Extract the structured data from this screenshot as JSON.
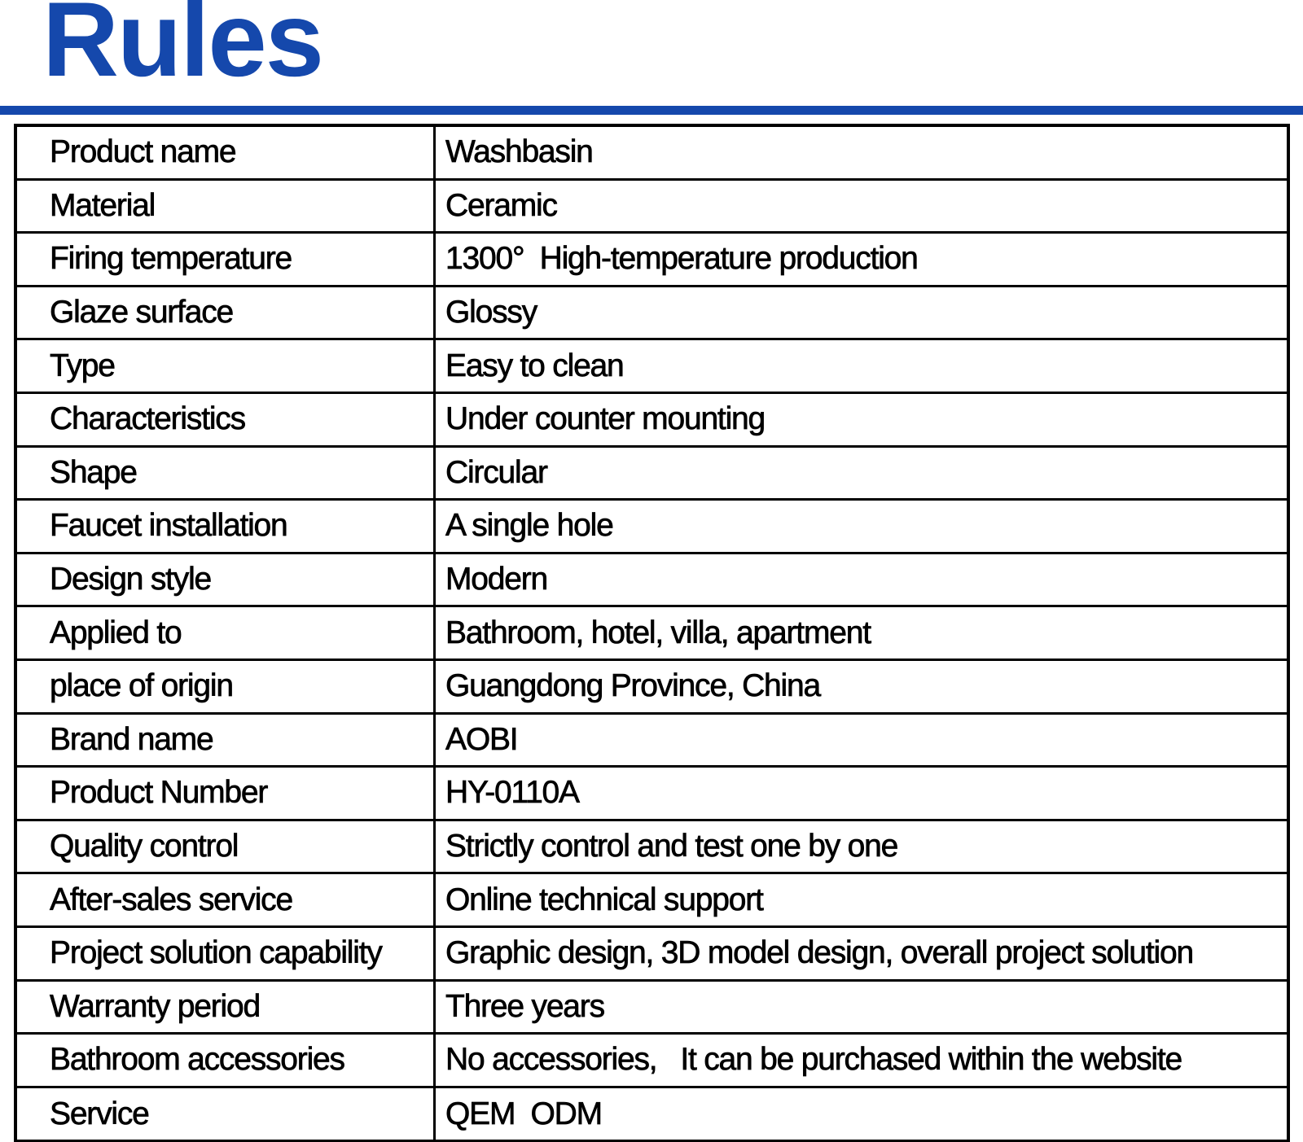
{
  "page": {
    "title": "Rules",
    "accent_color": "#1548ac",
    "border_color": "#000000",
    "text_color": "#000000"
  },
  "table": {
    "rows": [
      {
        "label": "Product name",
        "value": "Washbasin"
      },
      {
        "label": "Material",
        "value": "Ceramic"
      },
      {
        "label": "Firing temperature",
        "value": "1300°  High-temperature production"
      },
      {
        "label": "Glaze surface",
        "value": "Glossy"
      },
      {
        "label": "Type",
        "value": "Easy to clean"
      },
      {
        "label": "Characteristics",
        "value": "Under counter mounting"
      },
      {
        "label": "Shape",
        "value": "Circular"
      },
      {
        "label": "Faucet installation",
        "value": "A single hole"
      },
      {
        "label": "Design style",
        "value": "Modern"
      },
      {
        "label": "Applied to",
        "value": "Bathroom, hotel, villa, apartment"
      },
      {
        "label": "place of origin",
        "value": "Guangdong Province, China"
      },
      {
        "label": "Brand name",
        "value": "AOBI"
      },
      {
        "label": "Product Number",
        "value": "HY-0110A"
      },
      {
        "label": "Quality control",
        "value": "Strictly control and test one by one"
      },
      {
        "label": "After-sales service",
        "value": "Online technical support"
      },
      {
        "label": "Project solution capability",
        "value": "Graphic design, 3D model design, overall project solution"
      },
      {
        "label": "Warranty period",
        "value": "Three years"
      },
      {
        "label": "Bathroom accessories",
        "value": "No accessories,   It can be purchased within the website"
      },
      {
        "label": "Service",
        "value": "QEM  ODM"
      }
    ]
  }
}
